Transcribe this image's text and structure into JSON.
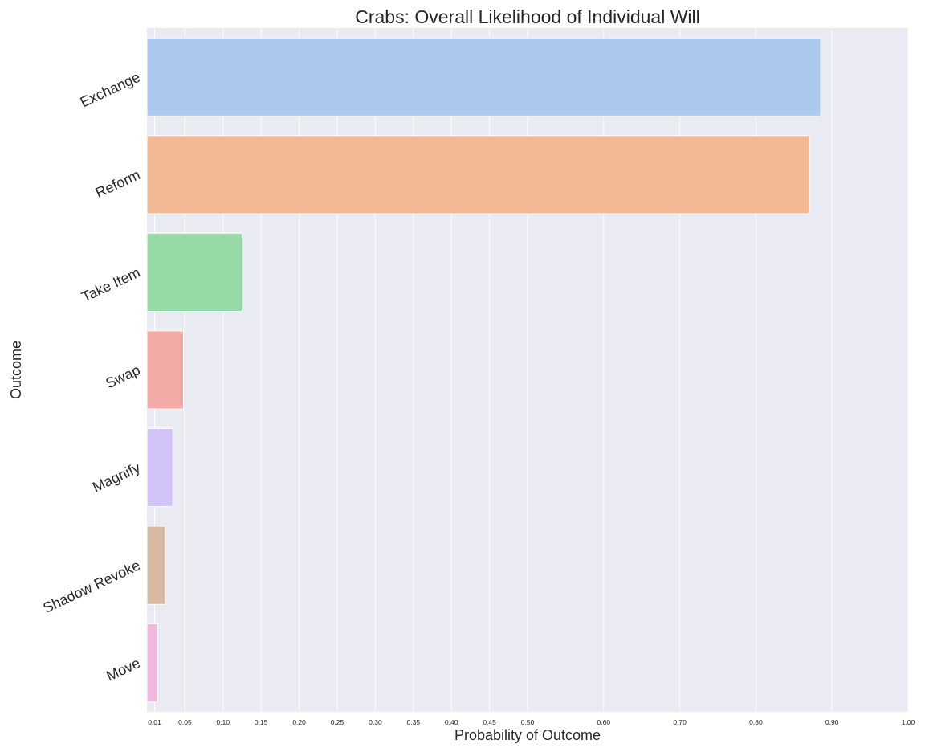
{
  "chart_data": {
    "type": "bar",
    "orientation": "horizontal",
    "title": "Crabs: Overall Likelihood of Individual Will",
    "xlabel": "Probability of Outcome",
    "ylabel": "Outcome",
    "xlim": [
      0,
      1.0
    ],
    "x_ticks": [
      "0.01",
      "0.05",
      "0.10",
      "0.15",
      "0.20",
      "0.25",
      "0.30",
      "0.35",
      "0.40",
      "0.45",
      "0.50",
      "0.60",
      "0.70",
      "0.80",
      "0.90",
      "1.00"
    ],
    "x_tick_values": [
      0.01,
      0.05,
      0.1,
      0.15,
      0.2,
      0.25,
      0.3,
      0.35,
      0.4,
      0.45,
      0.5,
      0.6,
      0.7,
      0.8,
      0.9,
      1.0
    ],
    "categories": [
      "Exchange",
      "Reform",
      "Take Item",
      "Swap",
      "Magnify",
      "Shadow Revoke",
      "Move"
    ],
    "values": [
      0.885,
      0.87,
      0.125,
      0.048,
      0.034,
      0.024,
      0.014
    ],
    "colors": [
      "#abc9ec",
      "#f0b893",
      "#98d9a8",
      "#f2aaa7",
      "#d2c4f6",
      "#d6b9a0",
      "#f0b7e0"
    ],
    "grid": true,
    "background": "#eaeaf2"
  }
}
